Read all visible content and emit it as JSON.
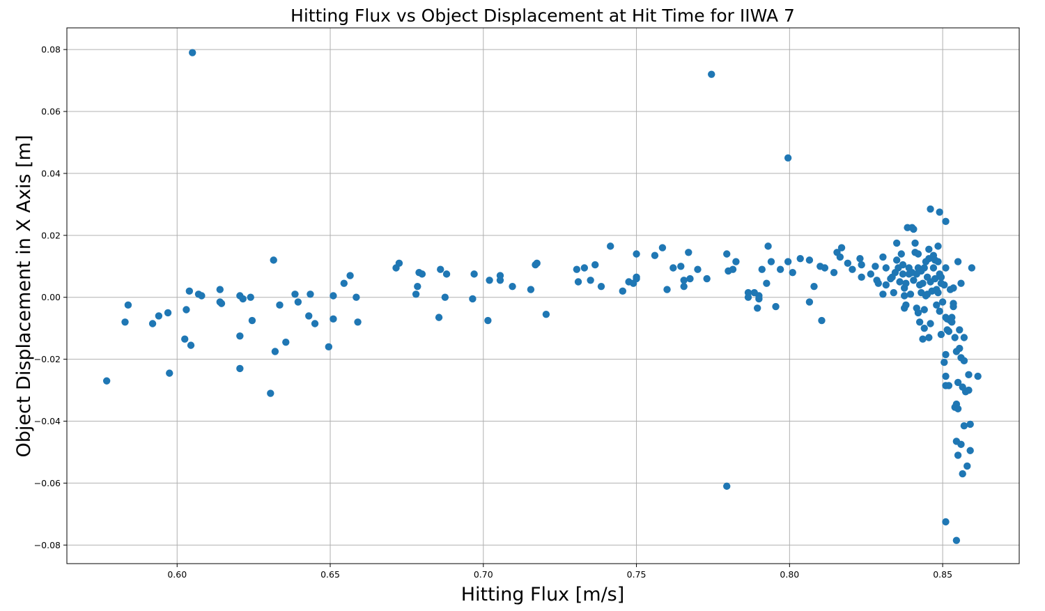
{
  "chart_data": {
    "type": "scatter",
    "title": "Hitting Flux vs Object Displacement at Hit Time for IIWA 7",
    "xlabel": "Hitting Flux [m/s]",
    "ylabel": "Object Displacement in X Axis [m]",
    "xlim": [
      0.564,
      0.875
    ],
    "ylim": [
      -0.086,
      0.087
    ],
    "xticks": [
      "0.60",
      "0.65",
      "0.70",
      "0.75",
      "0.80",
      "0.85"
    ],
    "yticks": [
      "−0.08",
      "−0.06",
      "−0.04",
      "−0.02",
      "0.00",
      "0.02",
      "0.04",
      "0.06",
      "0.08"
    ],
    "grid": true,
    "marker_color": "#1f77b4",
    "points": [
      [
        0.577,
        -0.027
      ],
      [
        0.583,
        -0.008
      ],
      [
        0.584,
        -0.0025
      ],
      [
        0.592,
        -0.0085
      ],
      [
        0.594,
        -0.006
      ],
      [
        0.597,
        -0.005
      ],
      [
        0.5975,
        -0.0245
      ],
      [
        0.6025,
        -0.0135
      ],
      [
        0.603,
        -0.004
      ],
      [
        0.604,
        0.002
      ],
      [
        0.6045,
        -0.0155
      ],
      [
        0.605,
        0.079
      ],
      [
        0.607,
        0.001
      ],
      [
        0.608,
        0.0005
      ],
      [
        0.614,
        0.0025
      ],
      [
        0.614,
        -0.0015
      ],
      [
        0.6145,
        -0.002
      ],
      [
        0.6205,
        0.0005
      ],
      [
        0.6205,
        -0.0125
      ],
      [
        0.6205,
        -0.023
      ],
      [
        0.6215,
        -0.0005
      ],
      [
        0.624,
        0.0
      ],
      [
        0.6245,
        -0.0075
      ],
      [
        0.6305,
        -0.031
      ],
      [
        0.6315,
        0.012
      ],
      [
        0.632,
        -0.0175
      ],
      [
        0.6335,
        -0.0025
      ],
      [
        0.6355,
        -0.0145
      ],
      [
        0.6385,
        0.001
      ],
      [
        0.6395,
        -0.0015
      ],
      [
        0.643,
        -0.006
      ],
      [
        0.6435,
        0.001
      ],
      [
        0.645,
        -0.0085
      ],
      [
        0.6495,
        -0.016
      ],
      [
        0.651,
        0.0005
      ],
      [
        0.651,
        -0.007
      ],
      [
        0.6545,
        0.0045
      ],
      [
        0.6565,
        0.007
      ],
      [
        0.6585,
        0.0
      ],
      [
        0.659,
        -0.008
      ],
      [
        0.6715,
        0.0095
      ],
      [
        0.6725,
        0.011
      ],
      [
        0.678,
        0.001
      ],
      [
        0.6785,
        0.0035
      ],
      [
        0.679,
        0.008
      ],
      [
        0.68,
        0.0075
      ],
      [
        0.6855,
        -0.0065
      ],
      [
        0.686,
        0.009
      ],
      [
        0.6875,
        0.0
      ],
      [
        0.688,
        0.0075
      ],
      [
        0.6965,
        -0.0005
      ],
      [
        0.697,
        0.0075
      ],
      [
        0.7015,
        -0.0075
      ],
      [
        0.702,
        0.0055
      ],
      [
        0.7055,
        0.007
      ],
      [
        0.7055,
        0.0055
      ],
      [
        0.7095,
        0.0035
      ],
      [
        0.7155,
        0.0025
      ],
      [
        0.717,
        0.0105
      ],
      [
        0.7175,
        0.011
      ],
      [
        0.7205,
        -0.0055
      ],
      [
        0.7305,
        0.009
      ],
      [
        0.731,
        0.005
      ],
      [
        0.733,
        0.0095
      ],
      [
        0.735,
        0.0055
      ],
      [
        0.7365,
        0.0105
      ],
      [
        0.7385,
        0.0035
      ],
      [
        0.7415,
        0.0165
      ],
      [
        0.7455,
        0.002
      ],
      [
        0.7475,
        0.005
      ],
      [
        0.749,
        0.0045
      ],
      [
        0.75,
        0.014
      ],
      [
        0.75,
        0.0065
      ],
      [
        0.75,
        0.006
      ],
      [
        0.756,
        0.0135
      ],
      [
        0.7585,
        0.016
      ],
      [
        0.76,
        0.0025
      ],
      [
        0.762,
        0.0095
      ],
      [
        0.7645,
        0.01
      ],
      [
        0.7655,
        0.0055
      ],
      [
        0.7655,
        0.0035
      ],
      [
        0.767,
        0.0145
      ],
      [
        0.7675,
        0.006
      ],
      [
        0.77,
        0.009
      ],
      [
        0.773,
        0.006
      ],
      [
        0.7745,
        0.072
      ],
      [
        0.7795,
        0.014
      ],
      [
        0.7795,
        -0.061
      ],
      [
        0.78,
        0.0085
      ],
      [
        0.7815,
        0.009
      ],
      [
        0.7825,
        0.0115
      ],
      [
        0.7865,
        0.0015
      ],
      [
        0.7865,
        0.0
      ],
      [
        0.7885,
        0.0015
      ],
      [
        0.7895,
        -0.0035
      ],
      [
        0.79,
        0.0005
      ],
      [
        0.79,
        -0.0005
      ],
      [
        0.791,
        0.009
      ],
      [
        0.7925,
        0.0045
      ],
      [
        0.793,
        0.0165
      ],
      [
        0.794,
        0.0115
      ],
      [
        0.7955,
        -0.003
      ],
      [
        0.797,
        0.009
      ],
      [
        0.7995,
        0.0115
      ],
      [
        0.7995,
        0.045
      ],
      [
        0.801,
        0.008
      ],
      [
        0.8035,
        0.0125
      ],
      [
        0.8065,
        0.012
      ],
      [
        0.8065,
        -0.0015
      ],
      [
        0.808,
        0.0035
      ],
      [
        0.81,
        0.01
      ],
      [
        0.8105,
        -0.0075
      ],
      [
        0.8115,
        0.0095
      ],
      [
        0.8145,
        0.008
      ],
      [
        0.8155,
        0.0145
      ],
      [
        0.8165,
        0.013
      ],
      [
        0.817,
        0.016
      ],
      [
        0.819,
        0.011
      ],
      [
        0.8205,
        0.009
      ],
      [
        0.823,
        0.0125
      ],
      [
        0.8235,
        0.0065
      ],
      [
        0.8235,
        0.0105
      ],
      [
        0.8265,
        0.0075
      ],
      [
        0.828,
        0.01
      ],
      [
        0.8285,
        0.0055
      ],
      [
        0.829,
        0.0045
      ],
      [
        0.8305,
        0.013
      ],
      [
        0.8305,
        0.001
      ],
      [
        0.8315,
        0.004
      ],
      [
        0.8315,
        0.0095
      ],
      [
        0.833,
        0.006
      ],
      [
        0.8335,
        0.0065
      ],
      [
        0.834,
        0.0015
      ],
      [
        0.8345,
        0.008
      ],
      [
        0.835,
        0.012
      ],
      [
        0.835,
        0.0175
      ],
      [
        0.8355,
        0.0095
      ],
      [
        0.836,
        0.005
      ],
      [
        0.8365,
        0.014
      ],
      [
        0.837,
        0.0075
      ],
      [
        0.837,
        0.0105
      ],
      [
        0.8375,
        0.0005
      ],
      [
        0.8375,
        0.003
      ],
      [
        0.8375,
        -0.0035
      ],
      [
        0.838,
        0.0045
      ],
      [
        0.838,
        -0.0025
      ],
      [
        0.8385,
        0.0225
      ],
      [
        0.839,
        0.0095
      ],
      [
        0.839,
        0.0075
      ],
      [
        0.8395,
        0.001
      ],
      [
        0.84,
        0.008
      ],
      [
        0.84,
        0.0225
      ],
      [
        0.8405,
        0.022
      ],
      [
        0.8405,
        0.0055
      ],
      [
        0.841,
        0.0145
      ],
      [
        0.841,
        0.0175
      ],
      [
        0.8415,
        0.0075
      ],
      [
        0.8415,
        -0.0035
      ],
      [
        0.842,
        0.0095
      ],
      [
        0.842,
        0.014
      ],
      [
        0.842,
        -0.005
      ],
      [
        0.8425,
        0.004
      ],
      [
        0.8425,
        -0.008
      ],
      [
        0.843,
        0.0085
      ],
      [
        0.843,
        0.0015
      ],
      [
        0.8435,
        0.0045
      ],
      [
        0.8435,
        -0.0135
      ],
      [
        0.844,
        0.0095
      ],
      [
        0.844,
        -0.004
      ],
      [
        0.844,
        -0.01
      ],
      [
        0.8445,
        0.0005
      ],
      [
        0.8445,
        0.0115
      ],
      [
        0.845,
        0.0065
      ],
      [
        0.845,
        0.001
      ],
      [
        0.8455,
        -0.013
      ],
      [
        0.8455,
        0.0155
      ],
      [
        0.8455,
        0.0125
      ],
      [
        0.846,
        0.0285
      ],
      [
        0.846,
        0.005
      ],
      [
        0.846,
        -0.0085
      ],
      [
        0.8465,
        0.002
      ],
      [
        0.847,
        0.0135
      ],
      [
        0.847,
        0.0095
      ],
      [
        0.8475,
        0.006
      ],
      [
        0.8475,
        0.012
      ],
      [
        0.848,
        0.0025
      ],
      [
        0.848,
        -0.0025
      ],
      [
        0.8485,
        0.0165
      ],
      [
        0.8485,
        0.0115
      ],
      [
        0.8485,
        0.0015
      ],
      [
        0.849,
        0.0075
      ],
      [
        0.849,
        0.0275
      ],
      [
        0.849,
        -0.0045
      ],
      [
        0.8495,
        0.0045
      ],
      [
        0.8495,
        0.0065
      ],
      [
        0.8495,
        -0.012
      ],
      [
        0.85,
        -0.0015
      ],
      [
        0.8505,
        0.004
      ],
      [
        0.8505,
        -0.021
      ],
      [
        0.851,
        -0.0065
      ],
      [
        0.851,
        0.0245
      ],
      [
        0.851,
        0.0095
      ],
      [
        0.851,
        -0.0185
      ],
      [
        0.851,
        -0.0255
      ],
      [
        0.851,
        -0.0285
      ],
      [
        0.851,
        -0.0725
      ],
      [
        0.8515,
        -0.007
      ],
      [
        0.8515,
        -0.0105
      ],
      [
        0.852,
        -0.011
      ],
      [
        0.852,
        -0.0285
      ],
      [
        0.8525,
        0.0025
      ],
      [
        0.8525,
        -0.0075
      ],
      [
        0.853,
        -0.0065
      ],
      [
        0.853,
        -0.008
      ],
      [
        0.8535,
        -0.002
      ],
      [
        0.8535,
        0.003
      ],
      [
        0.8535,
        -0.003
      ],
      [
        0.854,
        -0.013
      ],
      [
        0.854,
        -0.0355
      ],
      [
        0.8545,
        -0.0175
      ],
      [
        0.8545,
        -0.0345
      ],
      [
        0.8545,
        -0.0465
      ],
      [
        0.8545,
        -0.0785
      ],
      [
        0.855,
        0.0115
      ],
      [
        0.855,
        -0.0275
      ],
      [
        0.855,
        -0.036
      ],
      [
        0.855,
        -0.051
      ],
      [
        0.8555,
        -0.0105
      ],
      [
        0.8555,
        -0.0165
      ],
      [
        0.856,
        -0.0195
      ],
      [
        0.856,
        0.0045
      ],
      [
        0.856,
        -0.0475
      ],
      [
        0.8565,
        -0.029
      ],
      [
        0.8565,
        -0.057
      ],
      [
        0.857,
        -0.0205
      ],
      [
        0.857,
        -0.0415
      ],
      [
        0.857,
        -0.013
      ],
      [
        0.8575,
        -0.0305
      ],
      [
        0.858,
        -0.0545
      ],
      [
        0.8585,
        -0.03
      ],
      [
        0.8585,
        -0.025
      ],
      [
        0.859,
        -0.0495
      ],
      [
        0.859,
        -0.041
      ],
      [
        0.8595,
        0.0095
      ],
      [
        0.8615,
        -0.0255
      ]
    ]
  }
}
